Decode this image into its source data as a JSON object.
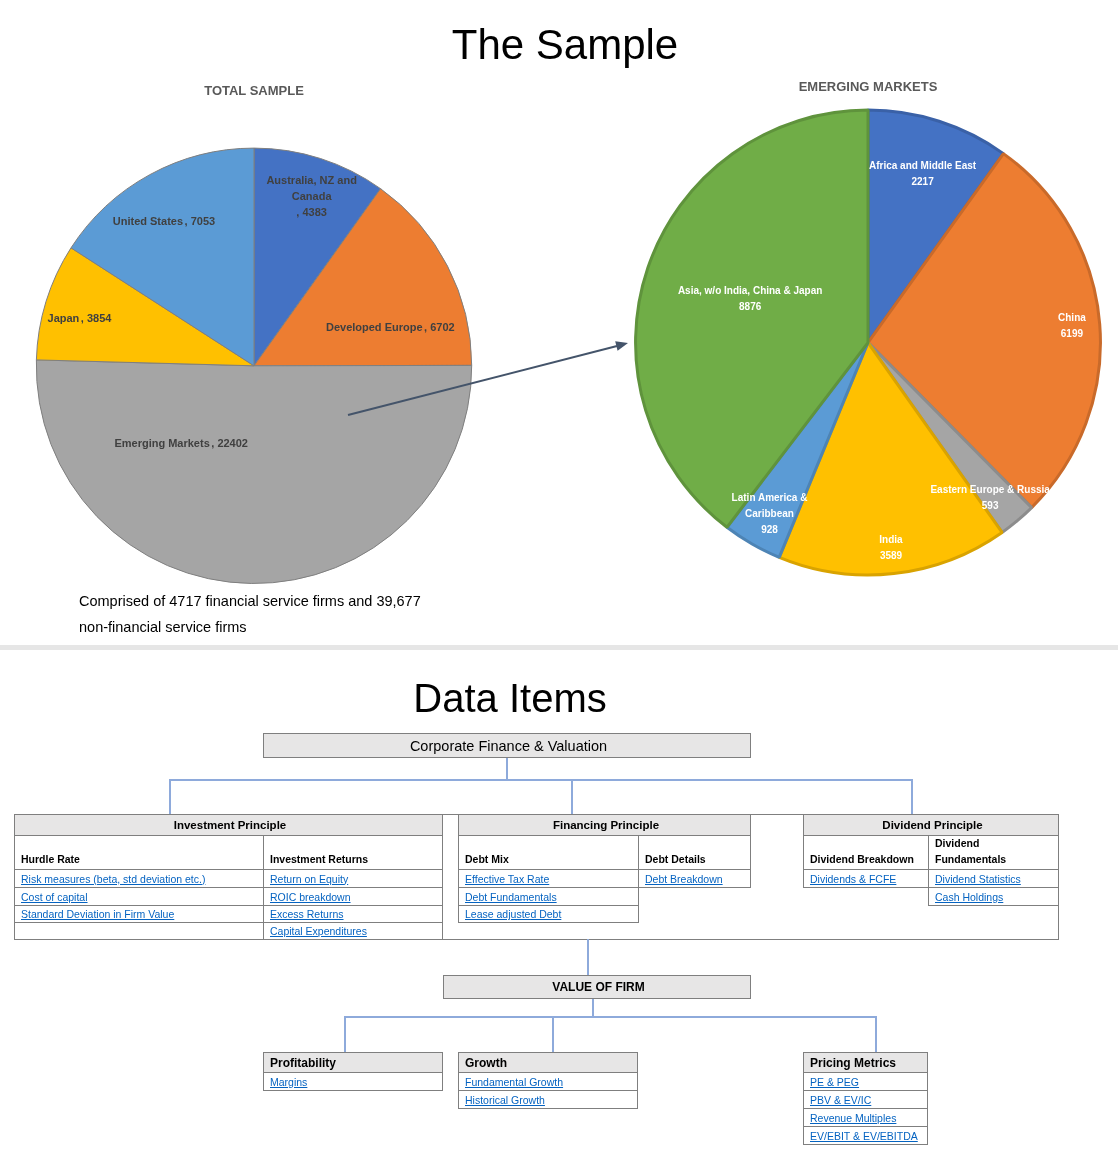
{
  "chart_data": [
    {
      "type": "other",
      "title": "The Sample"
    },
    {
      "type": "pie",
      "title": "TOTAL SAMPLE",
      "categories": [
        "Australia, NZ and Canada",
        "Developed Europe",
        "Emerging Markets",
        "Japan",
        "United States"
      ],
      "values": [
        4383,
        6702,
        22402,
        3854,
        7053
      ],
      "colors": [
        "#4472c4",
        "#ed7d31",
        "#a5a5a5",
        "#ffc000",
        "#5b9bd5"
      ],
      "value_labels": [
        ", 4383",
        ", 6702",
        ", 22402",
        ", 3854",
        ", 7053"
      ],
      "annotations": [
        "Comprised of 4717 financial service firms and 39,677 non-financial service firms"
      ]
    },
    {
      "type": "pie",
      "title": "EMERGING MARKETS",
      "categories": [
        "Africa and Middle East",
        "China",
        "Eastern Europe & Russia",
        "India",
        "Latin America & Caribbean",
        "Asia, w/o India, China & Japan"
      ],
      "values": [
        2217,
        6199,
        593,
        3589,
        928,
        8876
      ],
      "colors": [
        "#4472c4",
        "#ed7d31",
        "#a5a5a5",
        "#ffc000",
        "#5b9bd5",
        "#70ad47"
      ],
      "data_labels": true
    },
    {
      "type": "other",
      "title": "Data Items",
      "annotations": [
        "Corporate Finance & Valuation",
        "Investment Principle",
        "Hurdle Rate",
        "Risk measures (beta, std deviation etc.)",
        "Cost of capital",
        "Standard Deviation in Firm Value",
        "Investment Returns",
        "Return on Equity",
        "ROIC breakdown",
        "Excess Returns",
        "Capital Expenditures",
        "Financing Principle",
        "Debt Mix",
        "Effective Tax Rate",
        "Debt Fundamentals",
        "Lease adjusted Debt",
        "Debt Details",
        "Debt Breakdown",
        "Dividend Principle",
        "Dividend Breakdown",
        "Dividends & FCFE",
        "Dividend Fundamentals",
        "Dividend Statistics",
        "Cash Holdings",
        "VALUE OF FIRM",
        "Profitability",
        "Margins",
        "Growth",
        "Fundamental Growth",
        "Historical Growth",
        "Pricing Metrics",
        "PE & PEG",
        "PBV & EV/IC",
        "Revenue Multiples",
        "EV/EBIT & EV/EBITDA"
      ]
    }
  ]
}
